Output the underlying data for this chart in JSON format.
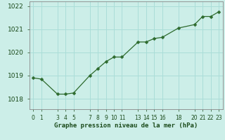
{
  "x": [
    0,
    1,
    3,
    4,
    5,
    7,
    8,
    9,
    10,
    11,
    13,
    14,
    15,
    16,
    18,
    20,
    21,
    22,
    23
  ],
  "y": [
    1018.9,
    1018.85,
    1018.2,
    1018.2,
    1018.25,
    1019.0,
    1019.3,
    1019.6,
    1019.8,
    1019.8,
    1020.45,
    1020.45,
    1020.6,
    1020.65,
    1021.05,
    1021.2,
    1021.55,
    1021.55,
    1021.75
  ],
  "line_color": "#2d6a2d",
  "marker_color": "#2d6a2d",
  "bg_color": "#cceee8",
  "grid_color": "#aaddd8",
  "axis_color": "#555555",
  "label_color": "#1a4a1a",
  "title": "Graphe pression niveau de la mer (hPa)",
  "yticks": [
    1018,
    1019,
    1020,
    1021,
    1022
  ],
  "xticks": [
    0,
    1,
    3,
    4,
    5,
    7,
    8,
    9,
    10,
    11,
    13,
    14,
    15,
    16,
    18,
    20,
    21,
    22,
    23
  ],
  "ylim": [
    1017.55,
    1022.2
  ],
  "xlim": [
    -0.5,
    23.5
  ]
}
